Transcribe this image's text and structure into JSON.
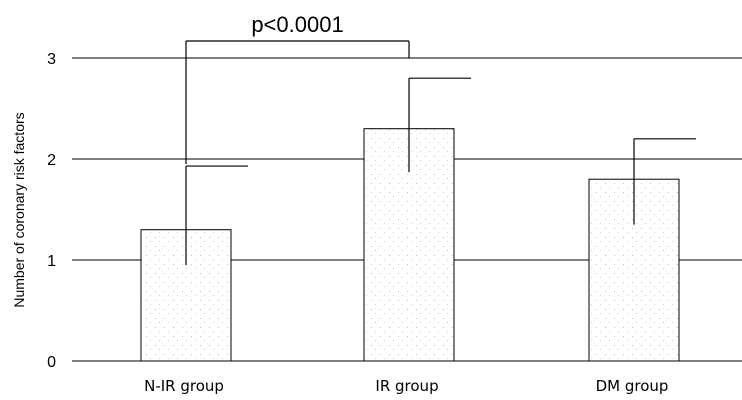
{
  "chart_data": {
    "type": "bar",
    "categories": [
      "N-IR group",
      "IR group",
      "DM group"
    ],
    "values": [
      1.3,
      2.3,
      1.8
    ],
    "error_upper": [
      1.93,
      2.8,
      2.2
    ],
    "error_lower": [
      0.95,
      1.87,
      1.35
    ],
    "ylabel": "Number of coronary risk factors",
    "xlabel": "",
    "ylim": [
      0,
      3
    ],
    "yticks": [
      0,
      1,
      2,
      3
    ],
    "grid": true,
    "bar_color": "#ffffff",
    "bar_edge_color": "#000000",
    "annotation": {
      "text": "p<0.0001",
      "from_category": "N-IR group",
      "to_category": "IR group"
    }
  }
}
